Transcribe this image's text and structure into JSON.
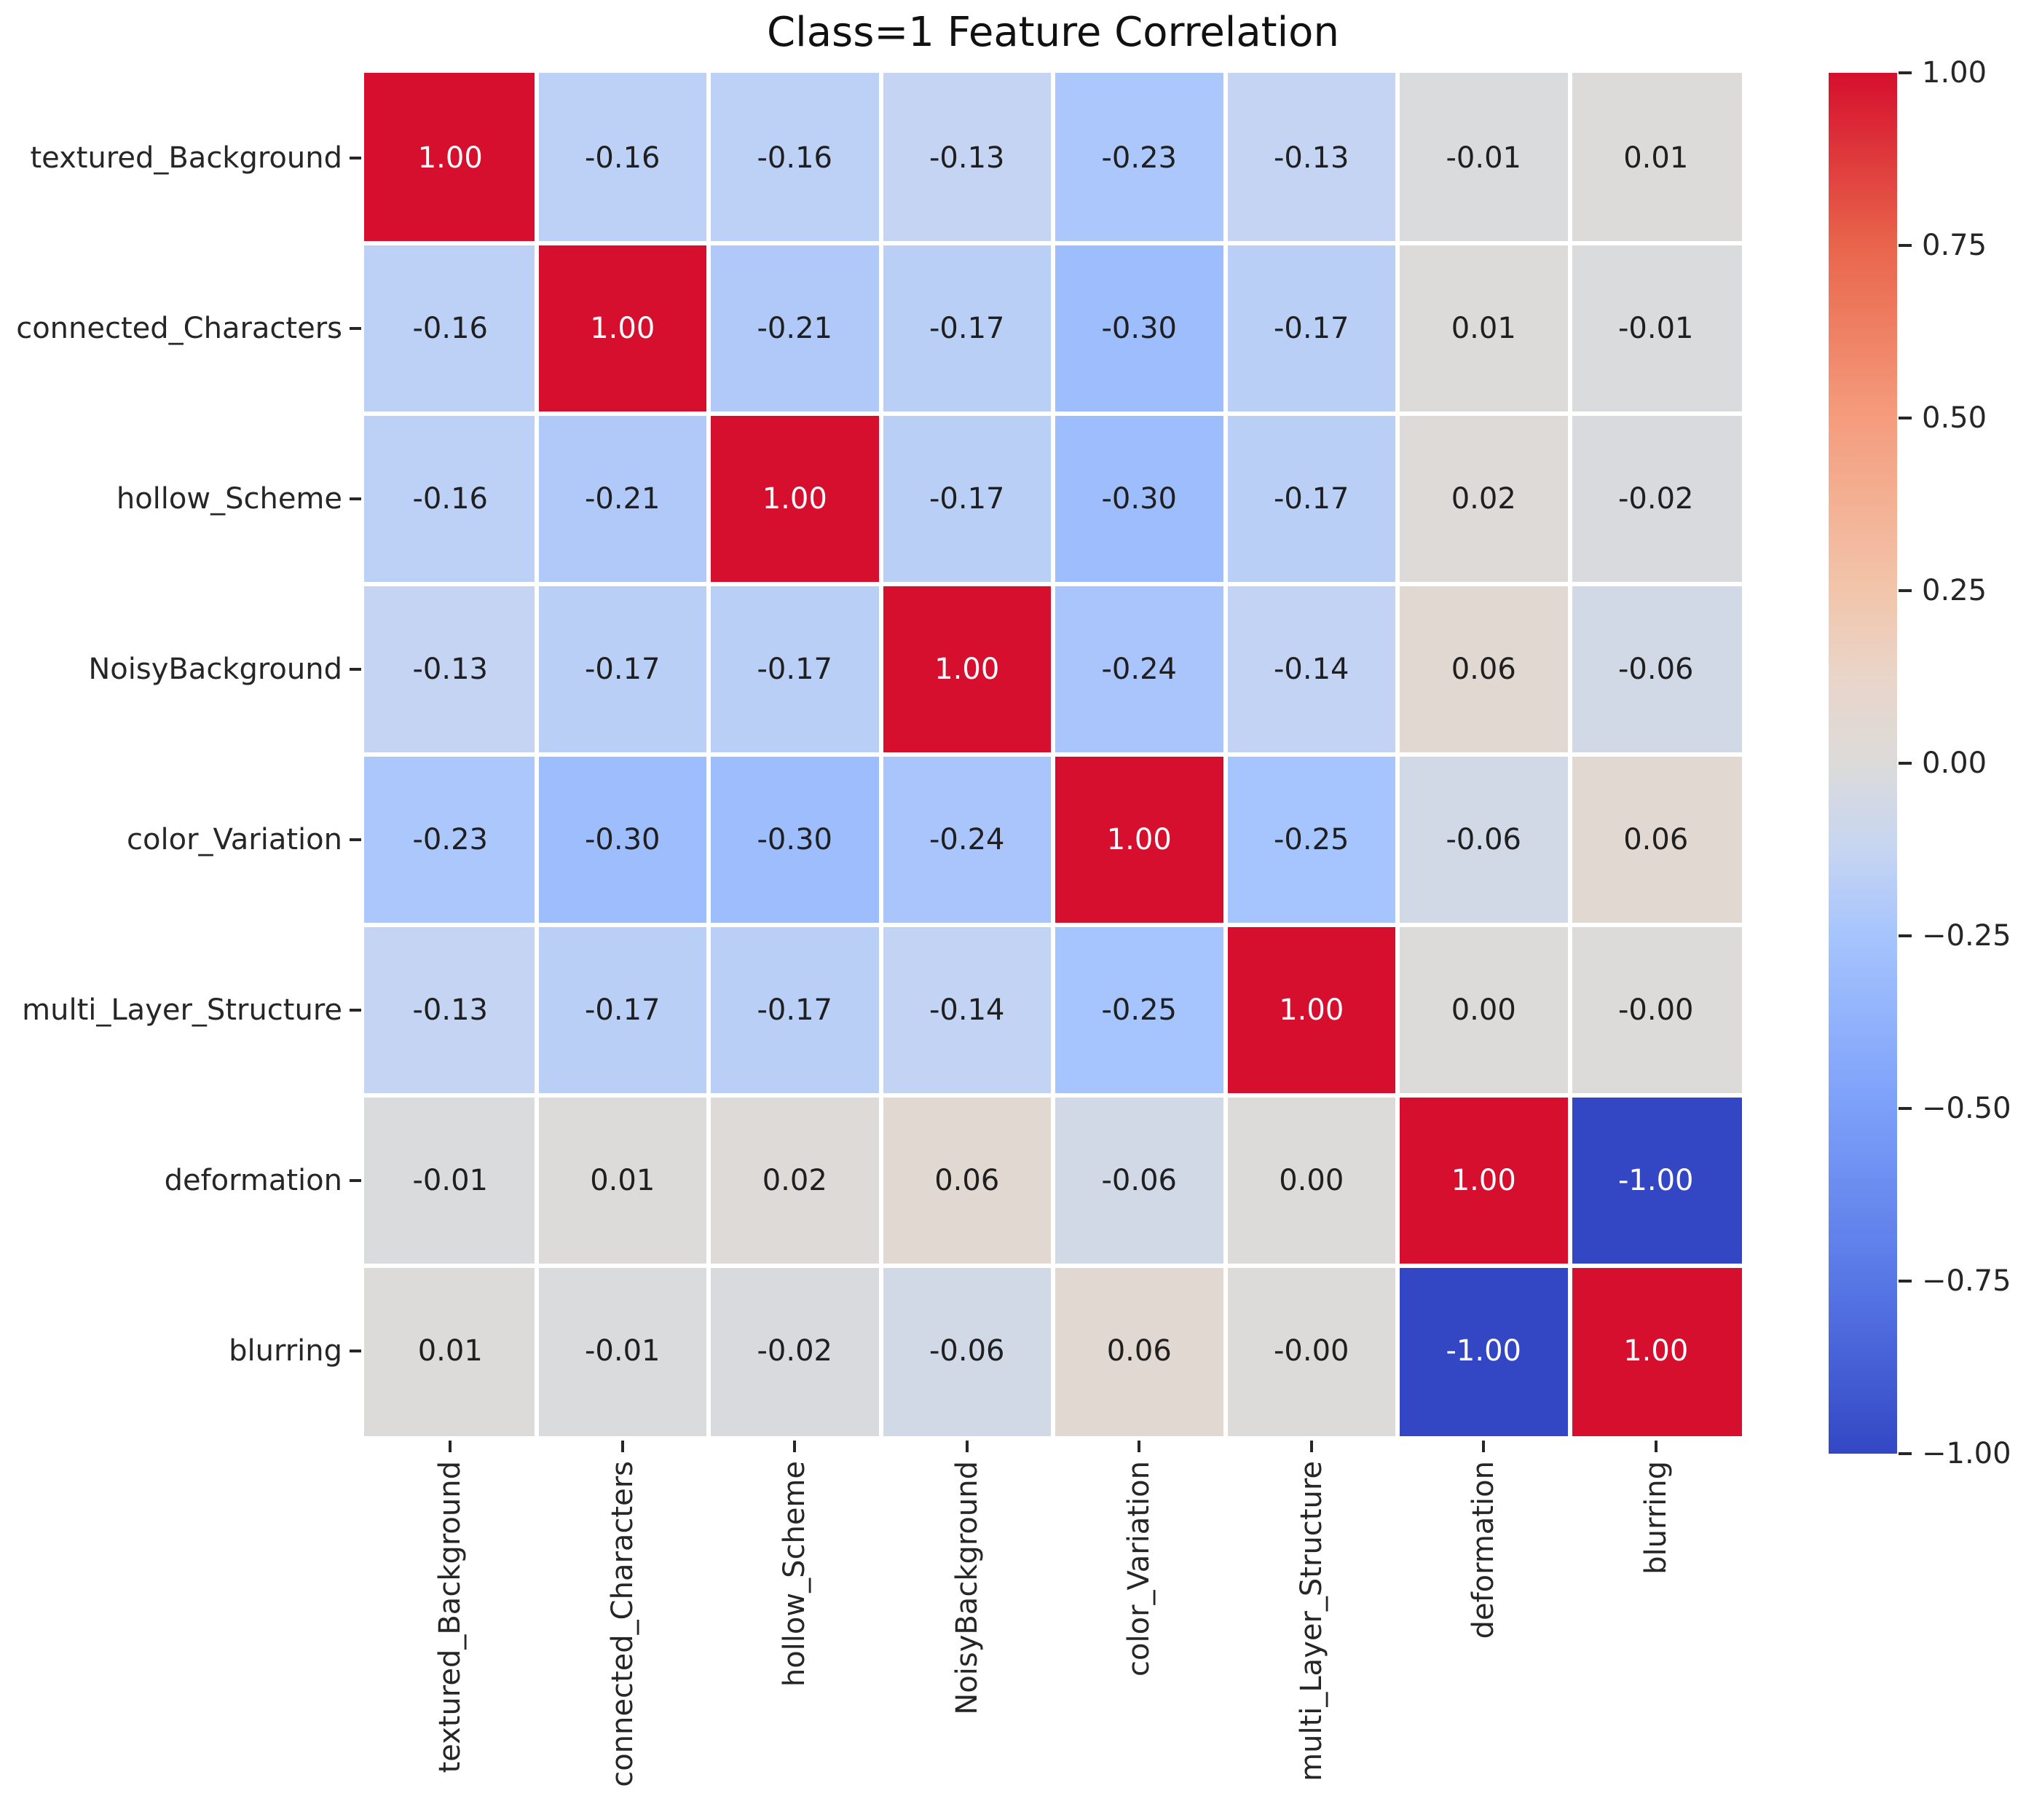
{
  "figure": {
    "title": "Class=1 Feature Correlation",
    "background_color": "#ffffff",
    "text_color": "#262626"
  },
  "chart_data": {
    "type": "heatmap",
    "title": "Class=1 Feature Correlation",
    "x_labels": [
      "textured_Background",
      "connected_Characters",
      "hollow_Scheme",
      "NoisyBackground",
      "color_Variation",
      "multi_Layer_Structure",
      "deformation",
      "blurring"
    ],
    "y_labels": [
      "textured_Background",
      "connected_Characters",
      "hollow_Scheme",
      "NoisyBackground",
      "color_Variation",
      "multi_Layer_Structure",
      "deformation",
      "blurring"
    ],
    "matrix": [
      [
        "1.00",
        "-0.16",
        "-0.16",
        "-0.13",
        "-0.23",
        "-0.13",
        "-0.01",
        "0.01"
      ],
      [
        "-0.16",
        "1.00",
        "-0.21",
        "-0.17",
        "-0.30",
        "-0.17",
        "0.01",
        "-0.01"
      ],
      [
        "-0.16",
        "-0.21",
        "1.00",
        "-0.17",
        "-0.30",
        "-0.17",
        "0.02",
        "-0.02"
      ],
      [
        "-0.13",
        "-0.17",
        "-0.17",
        "1.00",
        "-0.24",
        "-0.14",
        "0.06",
        "-0.06"
      ],
      [
        "-0.23",
        "-0.30",
        "-0.30",
        "-0.24",
        "1.00",
        "-0.25",
        "-0.06",
        "0.06"
      ],
      [
        "-0.13",
        "-0.17",
        "-0.17",
        "-0.14",
        "-0.25",
        "1.00",
        "0.00",
        "-0.00"
      ],
      [
        "-0.01",
        "0.01",
        "0.02",
        "0.06",
        "-0.06",
        "0.00",
        "1.00",
        "-1.00"
      ],
      [
        "0.01",
        "-0.01",
        "-0.02",
        "-0.06",
        "0.06",
        "-0.00",
        "-1.00",
        "1.00"
      ]
    ],
    "vmin": -1,
    "vmax": 1,
    "grid": true,
    "gridline_color": "#ffffff",
    "legend_position": "right-colorbar",
    "colormap": {
      "name": "coolwarm",
      "anchors": [
        {
          "t": 0.0,
          "color": "#3347c4"
        },
        {
          "t": 0.125,
          "color": "#5877e6"
        },
        {
          "t": 0.25,
          "color": "#7c9ff9"
        },
        {
          "t": 0.375,
          "color": "#a6c4fd"
        },
        {
          "t": 0.4375,
          "color": "#c6d5f2"
        },
        {
          "t": 0.5,
          "color": "#dcdbda"
        },
        {
          "t": 0.5625,
          "color": "#e9d5c9"
        },
        {
          "t": 0.625,
          "color": "#f2c5ab"
        },
        {
          "t": 0.75,
          "color": "#f59c7d"
        },
        {
          "t": 0.875,
          "color": "#e8654b"
        },
        {
          "t": 1.0,
          "color": "#d50f2d"
        }
      ]
    },
    "annotation_colors": {
      "dark": "#1f1f1f",
      "light": "#ffffff"
    },
    "colorbar": {
      "tick_values": [
        1.0,
        0.75,
        0.5,
        0.25,
        0.0,
        -0.25,
        -0.5,
        -0.75,
        -1.0
      ],
      "tick_labels": [
        "1.00",
        "0.75",
        "0.50",
        "0.25",
        "0.00",
        "−0.25",
        "−0.50",
        "−0.75",
        "−1.00"
      ]
    }
  }
}
